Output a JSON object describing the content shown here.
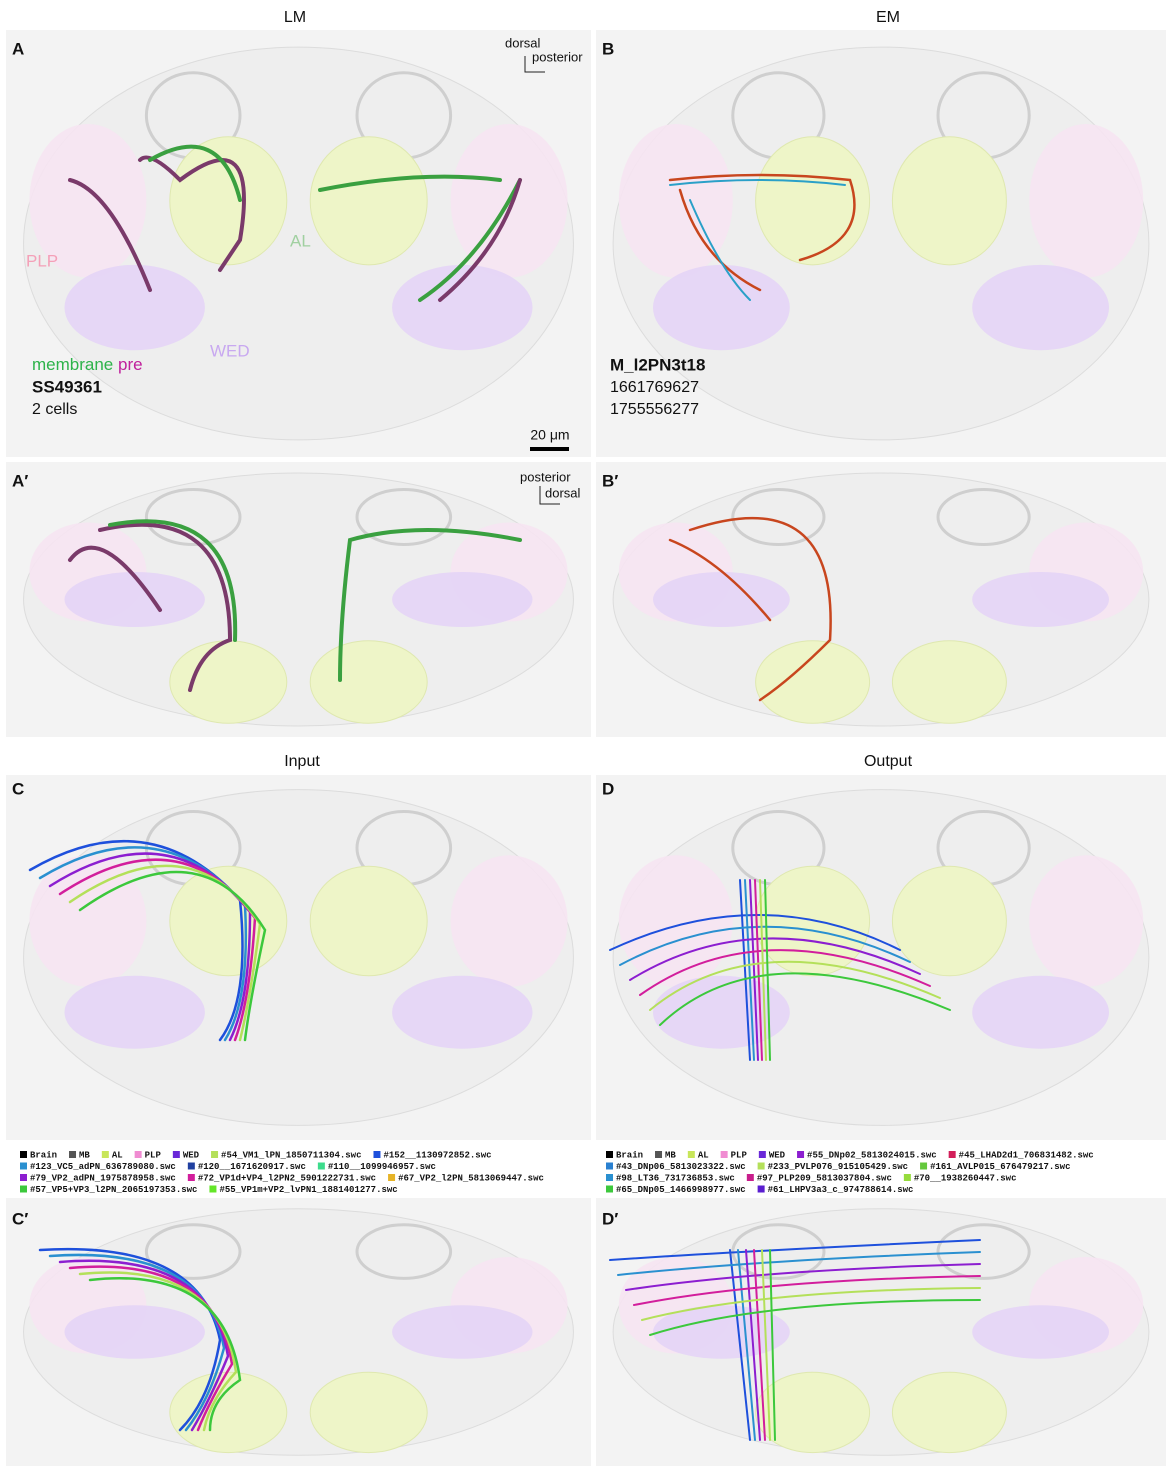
{
  "column_titles": {
    "left": "LM",
    "right": "EM"
  },
  "panel_a": {
    "label": "A",
    "axis_up": "dorsal",
    "axis_right": "posterior",
    "region_plp": "PLP",
    "region_al": "AL",
    "region_wed": "WED",
    "stain_membrane": "membrane",
    "stain_pre": "pre",
    "line_name": "SS49361",
    "cell_count": "2 cells",
    "scale_bar": "20 μm"
  },
  "panel_b": {
    "label": "B",
    "cell_type": "M_l2PN3t18",
    "body_ids": [
      "1661769627",
      "1755556277"
    ]
  },
  "panel_a_prime": {
    "label": "A′",
    "axis_up": "posterior",
    "axis_right": "dorsal"
  },
  "panel_b_prime": {
    "label": "B′"
  },
  "section_titles": {
    "input": "Input",
    "output": "Output"
  },
  "panel_c": {
    "label": "C",
    "legend": [
      [
        {
          "label": "Brain",
          "color": "#000000"
        },
        {
          "label": "MB",
          "color": "#555555"
        },
        {
          "label": "AL",
          "color": "#c8e65a"
        },
        {
          "label": "PLP",
          "color": "#f08cd2"
        },
        {
          "label": "WED",
          "color": "#6a28d8"
        },
        {
          "label": "#54_VM1_lPN_1850711304.swc",
          "color": "#b4e05a"
        },
        {
          "label": "#152__1130972852.swc",
          "color": "#1e50dc"
        }
      ],
      [
        {
          "label": "#123_VC5_adPN_636789080.swc",
          "color": "#2a90d0"
        },
        {
          "label": "#120__1671620917.swc",
          "color": "#2040a0"
        },
        {
          "label": "#110__1099946957.swc",
          "color": "#3cdc8c"
        }
      ],
      [
        {
          "label": "#79_VP2_adPN_1975878958.swc",
          "color": "#8c1ed0"
        },
        {
          "label": "#72_VP1d+VP4_l2PN2_5901222731.swc",
          "color": "#d21e9c"
        },
        {
          "label": "#67_VP2_l2PN_5813069447.swc",
          "color": "#e6b428"
        }
      ],
      [
        {
          "label": "#57_VP5+VP3_l2PN_2065197353.swc",
          "color": "#3cc83c"
        },
        {
          "label": "#55_VP1m+VP2_lvPN1_1881401277.swc",
          "color": "#64e628"
        }
      ]
    ]
  },
  "panel_d": {
    "label": "D",
    "legend": [
      [
        {
          "label": "Brain",
          "color": "#000000"
        },
        {
          "label": "MB",
          "color": "#555555"
        },
        {
          "label": "AL",
          "color": "#c8e65a"
        },
        {
          "label": "PLP",
          "color": "#f08cd2"
        },
        {
          "label": "WED",
          "color": "#6a28d8"
        },
        {
          "label": "#55_DNp02_5813024015.swc",
          "color": "#8c1ed0"
        },
        {
          "label": "#45_LHAD2d1_706831482.swc",
          "color": "#d21e5a"
        }
      ],
      [
        {
          "label": "#43_DNp06_5813023322.swc",
          "color": "#2a80d0"
        },
        {
          "label": "#233_PVLP076_915105429.swc",
          "color": "#b4e05a"
        },
        {
          "label": "#161_AVLP015_676479217.swc",
          "color": "#64c83c"
        }
      ],
      [
        {
          "label": "#98_LT36_731736853.swc",
          "color": "#2a90d0"
        },
        {
          "label": "#97_PLP209_5813037804.swc",
          "color": "#c81e8c"
        },
        {
          "label": "#70__1938260447.swc",
          "color": "#96dc3c"
        }
      ],
      [
        {
          "label": "#65_DNp05_1466998977.swc",
          "color": "#3cc83c"
        },
        {
          "label": "#61_LHPV3a3_c_974788614.swc",
          "color": "#5a1ed0"
        }
      ]
    ]
  },
  "panel_c_prime": {
    "label": "C′"
  },
  "panel_d_prime": {
    "label": "D′"
  }
}
